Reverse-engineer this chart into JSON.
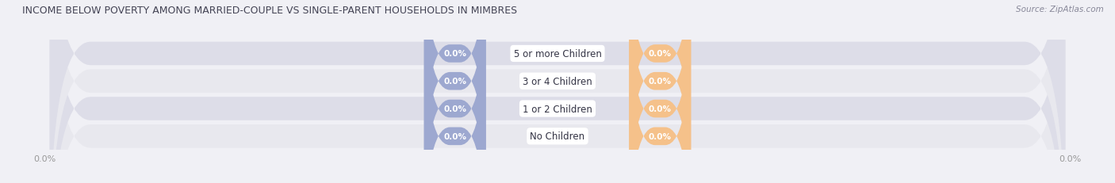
{
  "title": "INCOME BELOW POVERTY AMONG MARRIED-COUPLE VS SINGLE-PARENT HOUSEHOLDS IN MIMBRES",
  "source": "Source: ZipAtlas.com",
  "categories": [
    "No Children",
    "1 or 2 Children",
    "3 or 4 Children",
    "5 or more Children"
  ],
  "married_values": [
    0.0,
    0.0,
    0.0,
    0.0
  ],
  "single_values": [
    0.0,
    0.0,
    0.0,
    0.0
  ],
  "married_color": "#9DA8D0",
  "single_color": "#F5C18A",
  "row_bg_color": "#E8E8EE",
  "row_bg_alt_color": "#DDDDE8",
  "bg_color": "#F0F0F5",
  "title_color": "#444455",
  "source_color": "#888899",
  "axis_tick_color": "#999999",
  "figsize": [
    14.06,
    2.32
  ],
  "dpi": 100
}
